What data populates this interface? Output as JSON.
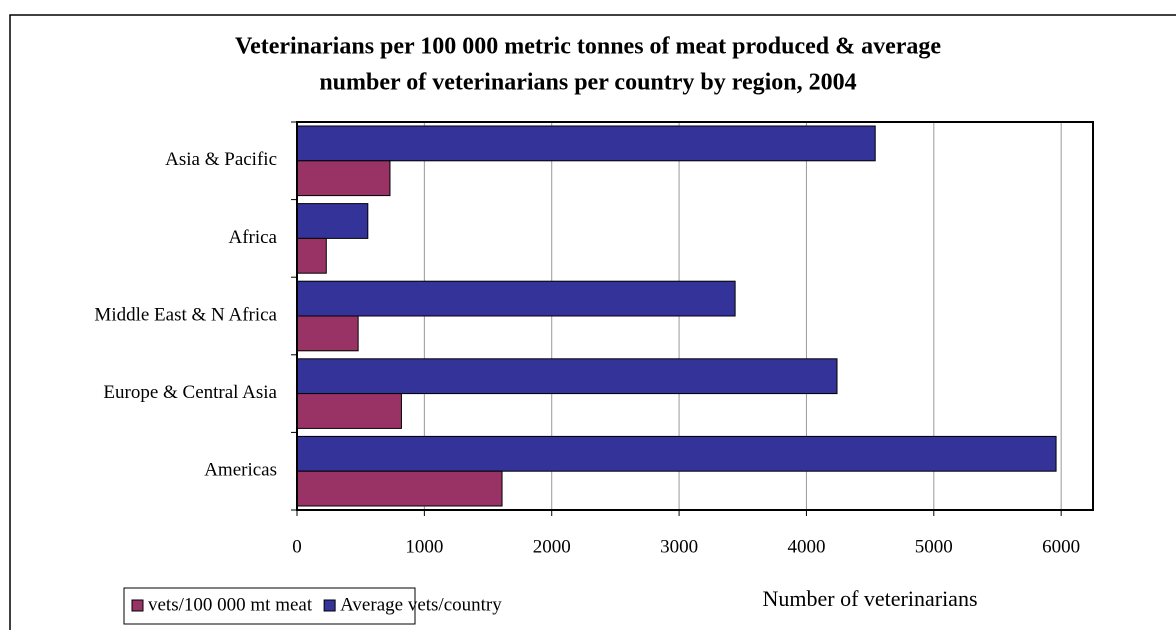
{
  "chart_data": {
    "type": "hbar",
    "title": "Veterinarians per 100 000 metric tonnes of meat produced & average",
    "subtitle": "number of veterinarians per country by region, 2004",
    "x_label": "Number of veterinarians",
    "categories": [
      "Asia & Pacific",
      "Africa",
      "Middle East & N Africa",
      "Europe & Central Asia",
      "Americas"
    ],
    "series": [
      {
        "name": "vets/100 000 mt meat",
        "color": "#993366",
        "values": [
          730,
          230,
          480,
          820,
          1610
        ]
      },
      {
        "name": "Average vets/country",
        "color": "#333399",
        "values": [
          4540,
          556,
          3440,
          4240,
          5960
        ]
      }
    ],
    "xlim": [
      0,
      6250
    ],
    "xticks": [
      0,
      1000,
      2000,
      3000,
      4000,
      5000,
      6000
    ],
    "grid": true
  }
}
